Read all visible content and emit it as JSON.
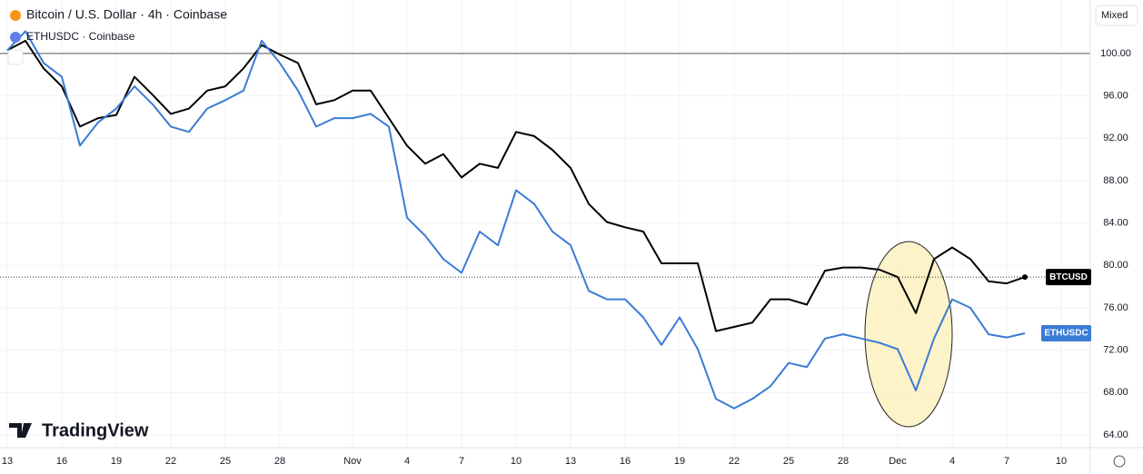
{
  "chart_data": {
    "type": "line",
    "title": "Bitcoin / U.S. Dollar · 4h · Coinbase",
    "subtitle": "ETHUSDC · Coinbase",
    "scale_mode": "Mixed",
    "brand": "TradingView",
    "x": [
      0,
      1,
      2,
      3,
      4,
      5,
      6,
      7,
      8,
      9,
      10,
      11,
      12,
      13,
      14,
      15,
      16,
      17,
      18,
      19,
      20,
      21,
      22,
      23,
      24,
      25,
      26,
      27,
      28,
      29,
      30,
      31,
      32,
      33,
      34,
      35,
      36,
      37,
      38,
      39,
      40,
      41,
      42,
      43,
      44,
      45,
      46,
      47,
      48,
      49,
      50,
      51,
      52,
      53,
      54,
      55,
      56
    ],
    "series": [
      {
        "name": "BTCUSD",
        "color": "#000000",
        "values": [
          100.3,
          101.2,
          98.6,
          96.9,
          93.1,
          93.9,
          94.2,
          97.8,
          96.1,
          94.3,
          94.8,
          96.5,
          96.9,
          98.6,
          100.8,
          99.9,
          99.1,
          95.2,
          95.6,
          96.5,
          96.5,
          93.9,
          91.3,
          89.6,
          90.5,
          88.3,
          89.6,
          89.2,
          92.6,
          92.2,
          90.9,
          89.2,
          85.8,
          84.1,
          83.6,
          83.2,
          80.2,
          80.2,
          80.2,
          73.8,
          74.2,
          74.6,
          76.8,
          76.8,
          76.3,
          79.5,
          79.8,
          79.8,
          79.6,
          78.9,
          75.5,
          80.6,
          81.7,
          80.6,
          78.5,
          78.3,
          78.9
        ]
      },
      {
        "name": "ETHUSDC",
        "color": "#3a7bd5",
        "values": [
          100.3,
          102.1,
          99.1,
          97.8,
          91.3,
          93.5,
          94.8,
          96.9,
          95.2,
          93.1,
          92.6,
          94.8,
          95.6,
          96.5,
          101.2,
          99.1,
          96.5,
          93.1,
          93.9,
          93.9,
          94.3,
          93.1,
          84.5,
          82.8,
          80.6,
          79.3,
          83.2,
          81.9,
          87.1,
          85.8,
          83.2,
          81.9,
          77.6,
          76.8,
          76.8,
          75.1,
          72.5,
          75.1,
          72.1,
          67.4,
          66.5,
          67.4,
          68.6,
          70.8,
          70.4,
          73.1,
          73.5,
          73.1,
          72.7,
          72.1,
          68.2,
          73.1,
          76.8,
          76.0,
          73.5,
          73.2,
          73.6
        ]
      }
    ],
    "xlim": [
      -0.4,
      59.6
    ],
    "xticks": [
      {
        "value": 0,
        "label": "13"
      },
      {
        "value": 3,
        "label": "16"
      },
      {
        "value": 6,
        "label": "19"
      },
      {
        "value": 9,
        "label": "22"
      },
      {
        "value": 12,
        "label": "25"
      },
      {
        "value": 15,
        "label": "28"
      },
      {
        "value": 19,
        "label": "Nov"
      },
      {
        "value": 22,
        "label": "4"
      },
      {
        "value": 25,
        "label": "7"
      },
      {
        "value": 28,
        "label": "10"
      },
      {
        "value": 31,
        "label": "13"
      },
      {
        "value": 34,
        "label": "16"
      },
      {
        "value": 37,
        "label": "19"
      },
      {
        "value": 40,
        "label": "22"
      },
      {
        "value": 43,
        "label": "25"
      },
      {
        "value": 46,
        "label": "28"
      },
      {
        "value": 49,
        "label": "Dec"
      },
      {
        "value": 52,
        "label": "4"
      },
      {
        "value": 55,
        "label": "7"
      },
      {
        "value": 58,
        "label": "10"
      }
    ],
    "ylim": [
      62.8,
      105.05
    ],
    "yticks": [
      {
        "value": 64,
        "label": "64.00"
      },
      {
        "value": 68,
        "label": "68.00"
      },
      {
        "value": 72,
        "label": "72.00"
      },
      {
        "value": 76,
        "label": "76.00"
      },
      {
        "value": 80,
        "label": "80.00"
      },
      {
        "value": 84,
        "label": "84.00"
      },
      {
        "value": 88,
        "label": "88.00"
      },
      {
        "value": 92,
        "label": "92.00"
      },
      {
        "value": 96,
        "label": "96.00"
      },
      {
        "value": 100,
        "label": "100.00"
      }
    ],
    "baseline": 100,
    "grid": true
  }
}
